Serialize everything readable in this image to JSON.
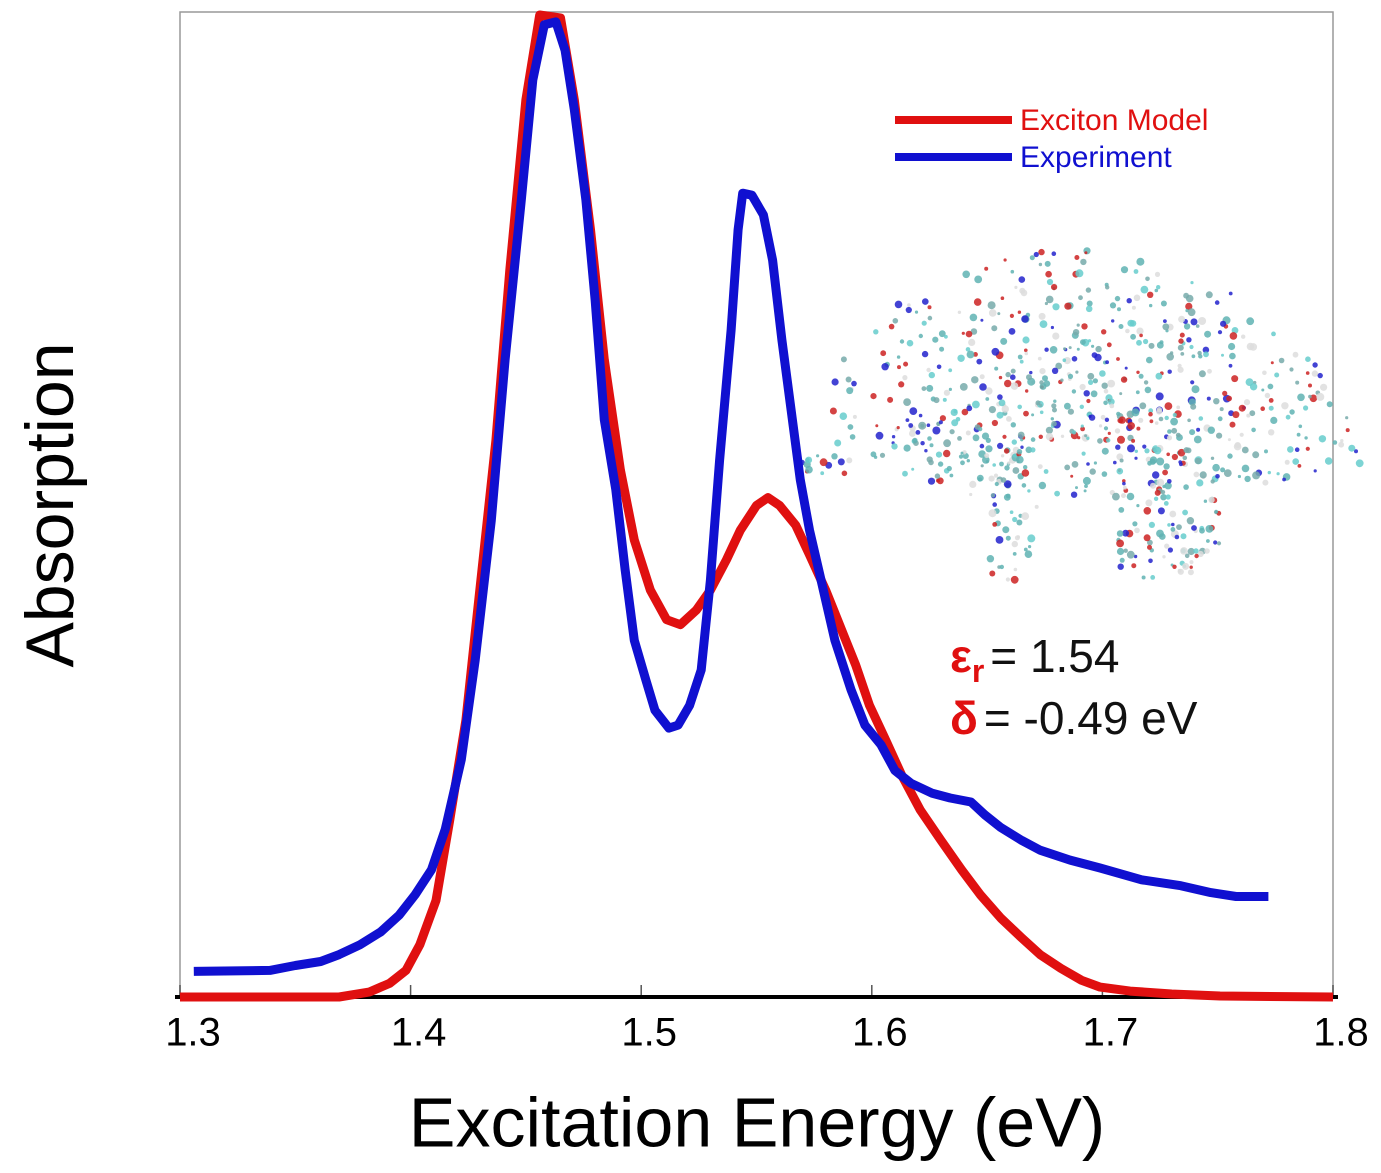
{
  "chart_data": {
    "type": "line",
    "x_label": "Excitation Energy (eV)",
    "y_label": "Absorption",
    "xlim": [
      1.3,
      1.8
    ],
    "xticks": [
      1.3,
      1.4,
      1.5,
      1.6,
      1.7,
      1.8
    ],
    "ylim": [
      0,
      1
    ],
    "legend": "upper right",
    "series": [
      {
        "name": "Exciton Model",
        "color": "#e01010",
        "x": [
          1.3,
          1.369,
          1.382,
          1.391,
          1.398,
          1.404,
          1.411,
          1.417,
          1.424,
          1.43,
          1.437,
          1.443,
          1.45,
          1.456,
          1.465,
          1.471,
          1.478,
          1.484,
          1.491,
          1.497,
          1.504,
          1.511,
          1.517,
          1.524,
          1.53,
          1.537,
          1.543,
          1.55,
          1.555,
          1.56,
          1.567,
          1.573,
          1.58,
          1.586,
          1.593,
          1.599,
          1.606,
          1.613,
          1.621,
          1.63,
          1.639,
          1.647,
          1.656,
          1.665,
          1.673,
          1.682,
          1.691,
          1.699,
          1.712,
          1.73,
          1.751,
          1.8
        ],
        "values": [
          0,
          0,
          0.005,
          0.014,
          0.027,
          0.053,
          0.098,
          0.18,
          0.281,
          0.413,
          0.565,
          0.738,
          0.911,
          0.997,
          0.994,
          0.911,
          0.779,
          0.647,
          0.535,
          0.464,
          0.413,
          0.383,
          0.378,
          0.393,
          0.413,
          0.444,
          0.474,
          0.499,
          0.507,
          0.499,
          0.479,
          0.449,
          0.413,
          0.378,
          0.337,
          0.296,
          0.261,
          0.225,
          0.19,
          0.159,
          0.129,
          0.104,
          0.08,
          0.06,
          0.043,
          0.029,
          0.017,
          0.01,
          0.006,
          0.003,
          0.001,
          0
        ]
      },
      {
        "name": "Experiment",
        "color": "#1010d0",
        "x": [
          1.306,
          1.339,
          1.35,
          1.361,
          1.369,
          1.378,
          1.387,
          1.395,
          1.402,
          1.409,
          1.415,
          1.422,
          1.428,
          1.435,
          1.441,
          1.448,
          1.453,
          1.458,
          1.463,
          1.467,
          1.471,
          1.476,
          1.48,
          1.484,
          1.489,
          1.493,
          1.497,
          1.502,
          1.506,
          1.512,
          1.516,
          1.521,
          1.526,
          1.53,
          1.534,
          1.539,
          1.542,
          1.544,
          1.548,
          1.553,
          1.557,
          1.561,
          1.565,
          1.569,
          1.573,
          1.578,
          1.584,
          1.591,
          1.597,
          1.604,
          1.61,
          1.617,
          1.626,
          1.634,
          1.643,
          1.649,
          1.656,
          1.665,
          1.673,
          1.686,
          1.699,
          1.717,
          1.734,
          1.747,
          1.758,
          1.772
        ],
        "values": [
          0.026,
          0.027,
          0.032,
          0.036,
          0.043,
          0.053,
          0.066,
          0.083,
          0.104,
          0.129,
          0.17,
          0.241,
          0.342,
          0.484,
          0.647,
          0.809,
          0.931,
          0.987,
          0.99,
          0.961,
          0.901,
          0.809,
          0.708,
          0.586,
          0.515,
          0.434,
          0.362,
          0.322,
          0.291,
          0.273,
          0.276,
          0.296,
          0.332,
          0.423,
          0.545,
          0.677,
          0.779,
          0.816,
          0.814,
          0.794,
          0.748,
          0.667,
          0.596,
          0.525,
          0.474,
          0.423,
          0.362,
          0.312,
          0.276,
          0.256,
          0.23,
          0.217,
          0.207,
          0.202,
          0.198,
          0.185,
          0.172,
          0.159,
          0.149,
          0.139,
          0.131,
          0.119,
          0.113,
          0.106,
          0.102,
          0.102
        ]
      }
    ],
    "annotations": [
      {
        "symbol": "ε",
        "subscript": "r",
        "text": "= 1.54"
      },
      {
        "symbol": "δ",
        "text": "= -0.49 eV"
      }
    ]
  }
}
